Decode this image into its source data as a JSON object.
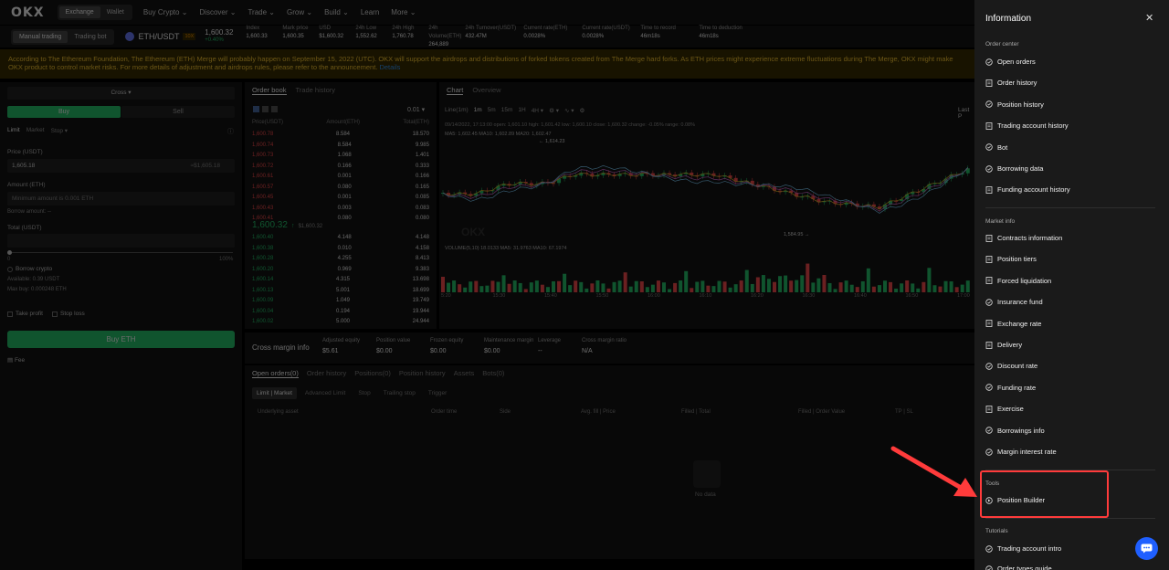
{
  "nav": {
    "logo": "OKX",
    "segments": [
      "Exchange",
      "Wallet"
    ],
    "menu": [
      "Buy Crypto",
      "Discover",
      "Trade",
      "Grow",
      "Build",
      "Learn",
      "More"
    ]
  },
  "ticker": {
    "modes": [
      "Manual trading",
      "Trading bot"
    ],
    "pair": "ETH/USDT",
    "leverage": "10X",
    "price": "1,600.32",
    "change": "+0.40%",
    "stats": [
      {
        "label": "Index",
        "value": "1,600.33"
      },
      {
        "label": "Mark price",
        "value": "1,600.35"
      },
      {
        "label": "USD",
        "value": "$1,600.32"
      },
      {
        "label": "24h Low",
        "value": "1,552.62"
      },
      {
        "label": "24h High",
        "value": "1,760.78"
      },
      {
        "label": "24h Volume(ETH)",
        "value": "264,889"
      },
      {
        "label": "24h Turnover(USDT)",
        "value": "432.47M"
      },
      {
        "label": "Current rate(ETH)",
        "value": "0.0028%"
      },
      {
        "label": "Current rate(USDT)",
        "value": "0.0028%"
      },
      {
        "label": "Time to record",
        "value": "46m18s"
      },
      {
        "label": "Time to deduction",
        "value": "46m18s"
      }
    ]
  },
  "banner": {
    "line1": "According to The Ethereum Foundation, The Ethereum (ETH) Merge will probably happen on September 15, 2022 (UTC). OKX will support the airdrops and distributions of forked tokens created from The Merge hard forks. As ETH prices might experience extreme fluctuations during The Merge, OKX might make",
    "line2": "OKX product to control market risks. For more details of adjustment and airdrops rules, please refer to the announcement.",
    "link": "Details"
  },
  "order_form": {
    "margin_mode": "Cross",
    "buy": "Buy",
    "sell": "Sell",
    "types": [
      "Limit",
      "Market",
      "Stop"
    ],
    "price_label": "Price (USDT)",
    "price_value": "1,605.18",
    "price_hint": "≈$1,605.18",
    "amount_label": "Amount (ETH)",
    "amount_placeholder": "Minimum amount is 0.001 ETH",
    "borrow_amount": "Borrow amount: --",
    "total_label": "Total (USDT)",
    "slider_min": "0",
    "slider_max": "100%",
    "borrow_crypto": "Borrow crypto",
    "available": "Available: 0.39 USDT",
    "max_buy": "Max buy: 0.000248 ETH",
    "take_profit": "Take profit",
    "stop_loss": "Stop loss",
    "submit": "Buy ETH",
    "fee": "Fee"
  },
  "order_book": {
    "tabs": [
      "Order book",
      "Trade history"
    ],
    "precision": "0.01",
    "headers": [
      "Price(USDT)",
      "Amount(ETH)",
      "Total(ETH)"
    ],
    "asks": [
      [
        "1,600.78",
        "8.584",
        "18.570"
      ],
      [
        "1,600.74",
        "8.584",
        "9.985"
      ],
      [
        "1,600.73",
        "1.068",
        "1.401"
      ],
      [
        "1,600.72",
        "0.166",
        "0.333"
      ],
      [
        "1,600.61",
        "0.001",
        "0.166"
      ],
      [
        "1,600.57",
        "0.080",
        "0.165"
      ],
      [
        "1,600.45",
        "0.001",
        "0.085"
      ],
      [
        "1,600.43",
        "0.003",
        "0.083"
      ],
      [
        "1,600.41",
        "0.080",
        "0.080"
      ]
    ],
    "last_price": "1,600.32",
    "last_price_usd": "$1,600.32",
    "bids": [
      [
        "1,600.40",
        "4.148",
        "4.148"
      ],
      [
        "1,600.38",
        "0.010",
        "4.158"
      ],
      [
        "1,600.28",
        "4.255",
        "8.413"
      ],
      [
        "1,600.20",
        "0.969",
        "9.383"
      ],
      [
        "1,600.14",
        "4.315",
        "13.698"
      ],
      [
        "1,600.13",
        "5.001",
        "18.699"
      ],
      [
        "1,600.09",
        "1.049",
        "19.749"
      ],
      [
        "1,600.04",
        "0.194",
        "19.944"
      ],
      [
        "1,600.02",
        "5.000",
        "24.944"
      ]
    ]
  },
  "chart": {
    "tabs": [
      "Chart",
      "Overview"
    ],
    "intervals": [
      "Line(1m)",
      "1m",
      "5m",
      "15m",
      "1H",
      "4H"
    ],
    "last_label": "Last P",
    "ohlc": "09/14/2022, 17:13:00   open: 1,601.10   high: 1,601.42   low: 1,600.10   close: 1,600.32   change: -0.05%   range: 0.08%",
    "ma": "MA5: 1,602.45   MA10: 1,602.89   MA20: 1,602.47",
    "high_label": "← 1,614.23",
    "low_label": "1,584.95 →",
    "watermark": "OKX",
    "volume": "VOLUME(5,10)  18.0133   MA5: 31.9763   MA10: 67.1974",
    "times": [
      "5:20",
      "15:30",
      "15:40",
      "15:50",
      "16:00",
      "16:10",
      "16:20",
      "16:30",
      "16:40",
      "16:50",
      "17:00"
    ]
  },
  "margin_info": {
    "title": "Cross margin info",
    "fields": [
      {
        "label": "Adjusted equity",
        "value": "$5.61"
      },
      {
        "label": "Position value",
        "value": "$0.00"
      },
      {
        "label": "Frozen equity",
        "value": "$0.00"
      },
      {
        "label": "Maintenance margin",
        "value": "$0.00"
      },
      {
        "label": "Leverage",
        "value": "--"
      },
      {
        "label": "Cross margin ratio",
        "value": "N/A"
      }
    ]
  },
  "orders": {
    "tabs": [
      "Open orders(0)",
      "Order history",
      "Positions(0)",
      "Position history",
      "Assets",
      "Bots(0)"
    ],
    "subtabs": [
      "Limit | Market",
      "Advanced Limit",
      "Stop",
      "Trailing stop",
      "Trigger"
    ],
    "columns": [
      "Underlying asset",
      "Order time",
      "Side",
      "Avg. fill | Price",
      "Filled | Total",
      "Filled | Order Value",
      "TP | SL"
    ],
    "empty": "No data"
  },
  "drawer": {
    "title": "Information",
    "sections": {
      "order_center": "Order center",
      "market_info": "Market info",
      "tools": "Tools",
      "tutorials": "Tutorials"
    },
    "order_center": [
      "Open orders",
      "Order history",
      "Position history",
      "Trading account history",
      "Bot",
      "Borrowing data",
      "Funding account history"
    ],
    "market_info": [
      "Contracts information",
      "Position tiers",
      "Forced liquidation",
      "Insurance fund",
      "Exchange rate",
      "Delivery",
      "Discount rate",
      "Funding rate",
      "Exercise",
      "Borrowings info",
      "Margin interest rate"
    ],
    "tools": [
      "Position Builder"
    ],
    "tutorials": [
      "Trading account intro",
      "Order types guide"
    ]
  },
  "colors": {
    "up": "#25c76e",
    "down": "#ff4d4f",
    "highlight": "#ff3b3b",
    "brand_blue": "#1f5fff"
  }
}
